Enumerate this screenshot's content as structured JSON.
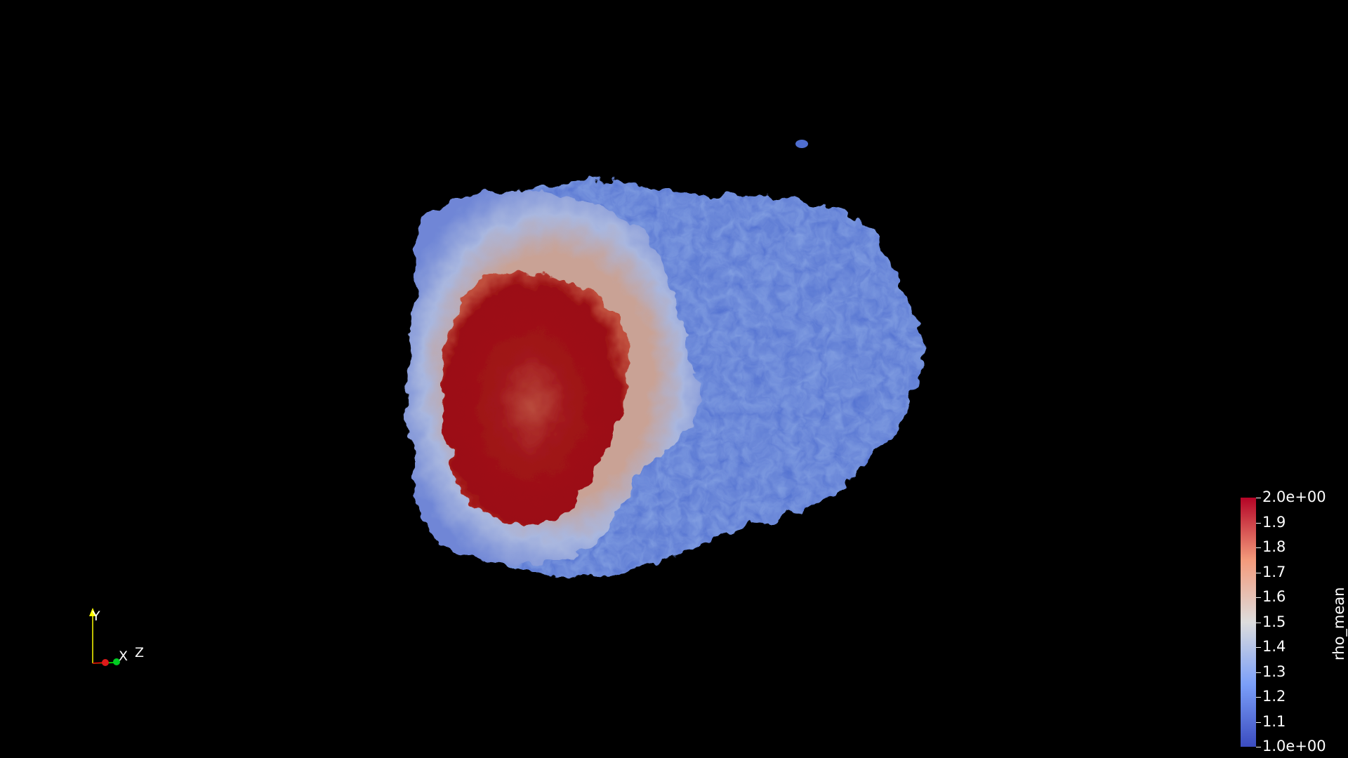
{
  "view": {
    "background": "#000000"
  },
  "colorbar": {
    "title": "rho_mean",
    "ticks": [
      {
        "label": "2.0e+00",
        "value": 2.0
      },
      {
        "label": "1.9",
        "value": 1.9
      },
      {
        "label": "1.8",
        "value": 1.8
      },
      {
        "label": "1.7",
        "value": 1.7
      },
      {
        "label": "1.6",
        "value": 1.6
      },
      {
        "label": "1.5",
        "value": 1.5
      },
      {
        "label": "1.4",
        "value": 1.4
      },
      {
        "label": "1.3",
        "value": 1.3
      },
      {
        "label": "1.2",
        "value": 1.2
      },
      {
        "label": "1.1",
        "value": 1.1
      },
      {
        "label": "1.0e+00",
        "value": 1.0
      }
    ],
    "range": [
      1.0,
      2.0
    ],
    "colors": {
      "low": "#3b4cc0",
      "mid": "#dddddd",
      "high": "#b40426"
    }
  },
  "axes": {
    "y_label": "Y",
    "x_label": "X",
    "z_label": "Z",
    "colors": {
      "y": "#ffff00",
      "x": "#ff0000",
      "z": "#00ff00"
    }
  },
  "volume": {
    "outer_color": "#4f6ed0",
    "core_color": "#9b0d12",
    "rim_color": "#b6c4e3"
  }
}
